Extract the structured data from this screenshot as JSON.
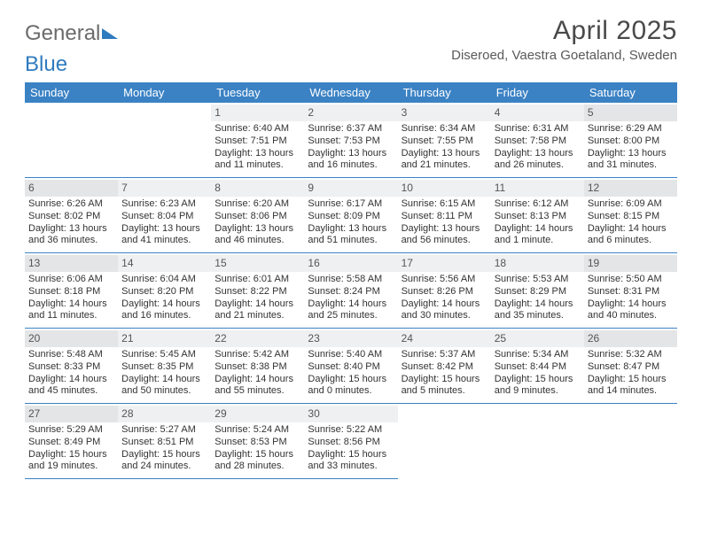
{
  "brand": {
    "part1": "General",
    "part2": "Blue"
  },
  "title": "April 2025",
  "location": "Diseroed, Vaestra Goetaland, Sweden",
  "colors": {
    "header_bg": "#3b82c4",
    "header_fg": "#ffffff",
    "border": "#3b82c4",
    "daynum_bg": "#eef0f1",
    "text": "#333333",
    "title": "#4a4a4a"
  },
  "weekdays": [
    "Sunday",
    "Monday",
    "Tuesday",
    "Wednesday",
    "Thursday",
    "Friday",
    "Saturday"
  ],
  "leading_blanks": 2,
  "days": [
    {
      "n": 1,
      "sunrise": "6:40 AM",
      "sunset": "7:51 PM",
      "daylight": "13 hours and 11 minutes."
    },
    {
      "n": 2,
      "sunrise": "6:37 AM",
      "sunset": "7:53 PM",
      "daylight": "13 hours and 16 minutes."
    },
    {
      "n": 3,
      "sunrise": "6:34 AM",
      "sunset": "7:55 PM",
      "daylight": "13 hours and 21 minutes."
    },
    {
      "n": 4,
      "sunrise": "6:31 AM",
      "sunset": "7:58 PM",
      "daylight": "13 hours and 26 minutes."
    },
    {
      "n": 5,
      "sunrise": "6:29 AM",
      "sunset": "8:00 PM",
      "daylight": "13 hours and 31 minutes."
    },
    {
      "n": 6,
      "sunrise": "6:26 AM",
      "sunset": "8:02 PM",
      "daylight": "13 hours and 36 minutes."
    },
    {
      "n": 7,
      "sunrise": "6:23 AM",
      "sunset": "8:04 PM",
      "daylight": "13 hours and 41 minutes."
    },
    {
      "n": 8,
      "sunrise": "6:20 AM",
      "sunset": "8:06 PM",
      "daylight": "13 hours and 46 minutes."
    },
    {
      "n": 9,
      "sunrise": "6:17 AM",
      "sunset": "8:09 PM",
      "daylight": "13 hours and 51 minutes."
    },
    {
      "n": 10,
      "sunrise": "6:15 AM",
      "sunset": "8:11 PM",
      "daylight": "13 hours and 56 minutes."
    },
    {
      "n": 11,
      "sunrise": "6:12 AM",
      "sunset": "8:13 PM",
      "daylight": "14 hours and 1 minute."
    },
    {
      "n": 12,
      "sunrise": "6:09 AM",
      "sunset": "8:15 PM",
      "daylight": "14 hours and 6 minutes."
    },
    {
      "n": 13,
      "sunrise": "6:06 AM",
      "sunset": "8:18 PM",
      "daylight": "14 hours and 11 minutes."
    },
    {
      "n": 14,
      "sunrise": "6:04 AM",
      "sunset": "8:20 PM",
      "daylight": "14 hours and 16 minutes."
    },
    {
      "n": 15,
      "sunrise": "6:01 AM",
      "sunset": "8:22 PM",
      "daylight": "14 hours and 21 minutes."
    },
    {
      "n": 16,
      "sunrise": "5:58 AM",
      "sunset": "8:24 PM",
      "daylight": "14 hours and 25 minutes."
    },
    {
      "n": 17,
      "sunrise": "5:56 AM",
      "sunset": "8:26 PM",
      "daylight": "14 hours and 30 minutes."
    },
    {
      "n": 18,
      "sunrise": "5:53 AM",
      "sunset": "8:29 PM",
      "daylight": "14 hours and 35 minutes."
    },
    {
      "n": 19,
      "sunrise": "5:50 AM",
      "sunset": "8:31 PM",
      "daylight": "14 hours and 40 minutes."
    },
    {
      "n": 20,
      "sunrise": "5:48 AM",
      "sunset": "8:33 PM",
      "daylight": "14 hours and 45 minutes."
    },
    {
      "n": 21,
      "sunrise": "5:45 AM",
      "sunset": "8:35 PM",
      "daylight": "14 hours and 50 minutes."
    },
    {
      "n": 22,
      "sunrise": "5:42 AM",
      "sunset": "8:38 PM",
      "daylight": "14 hours and 55 minutes."
    },
    {
      "n": 23,
      "sunrise": "5:40 AM",
      "sunset": "8:40 PM",
      "daylight": "15 hours and 0 minutes."
    },
    {
      "n": 24,
      "sunrise": "5:37 AM",
      "sunset": "8:42 PM",
      "daylight": "15 hours and 5 minutes."
    },
    {
      "n": 25,
      "sunrise": "5:34 AM",
      "sunset": "8:44 PM",
      "daylight": "15 hours and 9 minutes."
    },
    {
      "n": 26,
      "sunrise": "5:32 AM",
      "sunset": "8:47 PM",
      "daylight": "15 hours and 14 minutes."
    },
    {
      "n": 27,
      "sunrise": "5:29 AM",
      "sunset": "8:49 PM",
      "daylight": "15 hours and 19 minutes."
    },
    {
      "n": 28,
      "sunrise": "5:27 AM",
      "sunset": "8:51 PM",
      "daylight": "15 hours and 24 minutes."
    },
    {
      "n": 29,
      "sunrise": "5:24 AM",
      "sunset": "8:53 PM",
      "daylight": "15 hours and 28 minutes."
    },
    {
      "n": 30,
      "sunrise": "5:22 AM",
      "sunset": "8:56 PM",
      "daylight": "15 hours and 33 minutes."
    }
  ],
  "labels": {
    "sunrise": "Sunrise:",
    "sunset": "Sunset:",
    "daylight": "Daylight:"
  }
}
